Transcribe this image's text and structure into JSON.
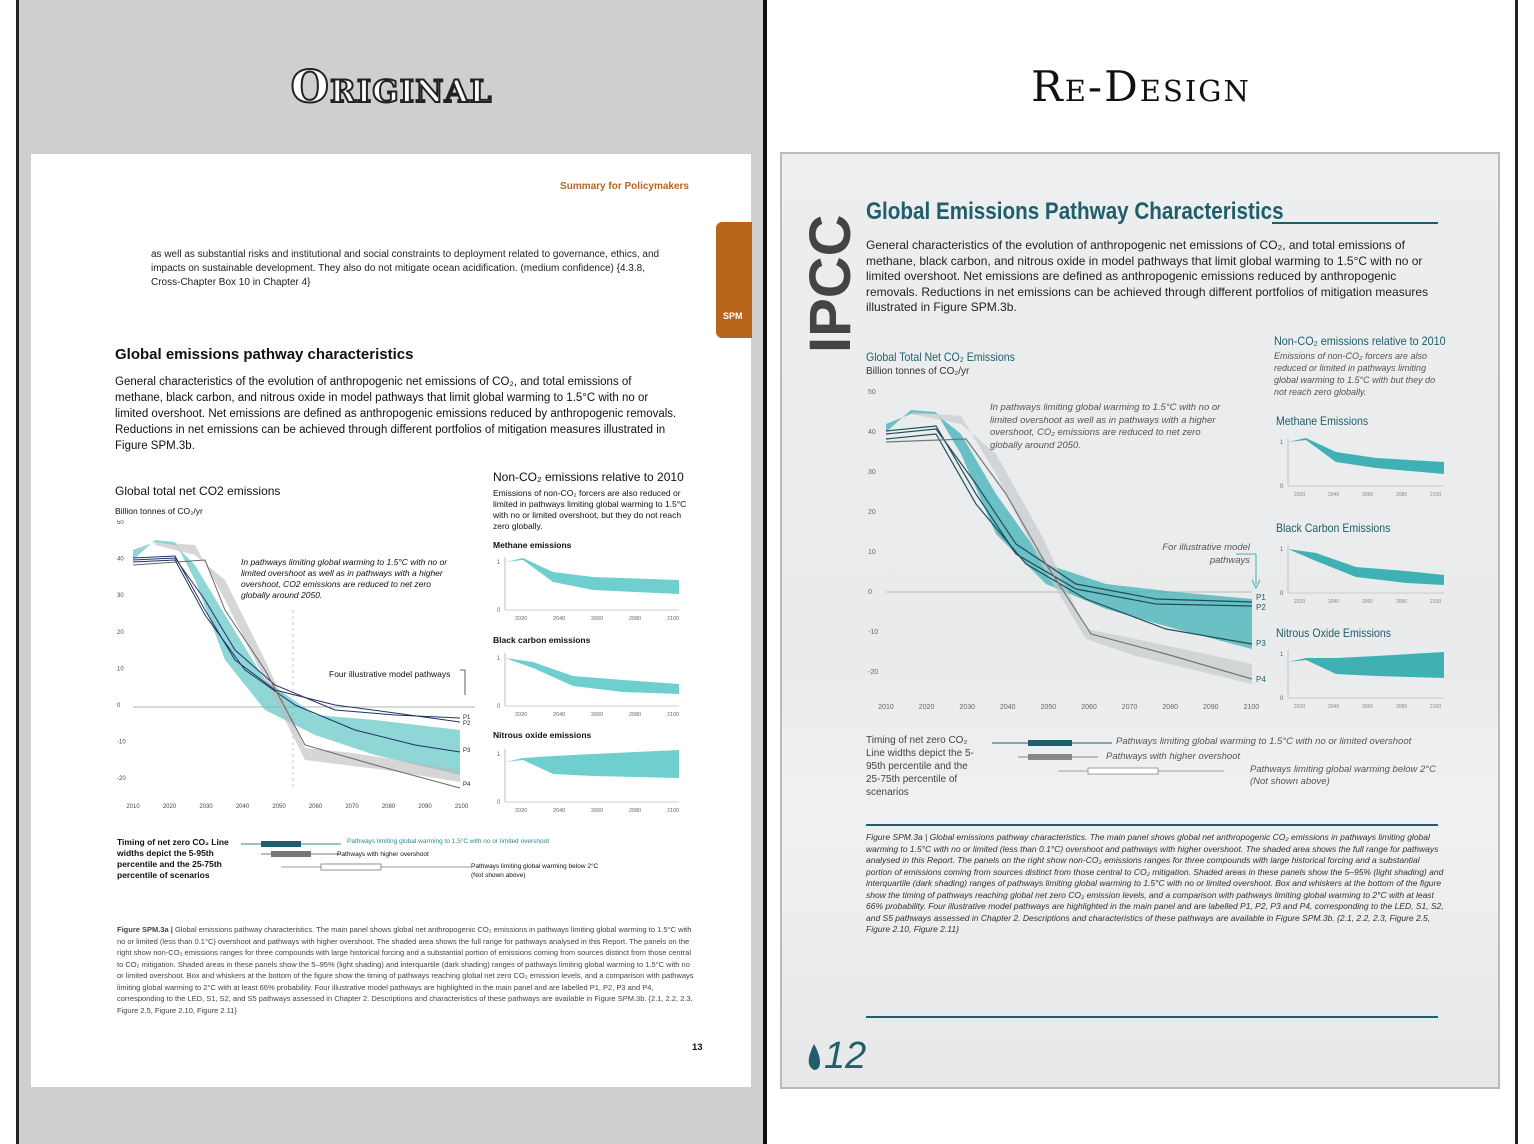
{
  "headings": {
    "original": "Original",
    "redesign": "Re-Design"
  },
  "original": {
    "header": "Summary for Policymakers",
    "tab": "SPM",
    "intro": "as well as substantial risks and institutional and social constraints to deployment related to governance, ethics, and impacts on sustainable development. They also do not mitigate ocean acidification. (medium confidence) {4.3.8, Cross-Chapter Box 10 in Chapter 4}",
    "title": "Global emissions pathway characteristics",
    "description": "General characteristics of the evolution of anthropogenic net emissions of CO₂, and total emissions of methane, black carbon, and nitrous oxide in model pathways that limit global warming to 1.5°C with no or limited overshoot. Net emissions are defined as anthropogenic emissions reduced by anthropogenic removals. Reductions in net emissions can be achieved through different portfolios of mitigation measures illustrated in Figure SPM.3b.",
    "chart_title": "Global total net CO2 emissions",
    "unit": "Billion tonnes of CO₂/yr",
    "annotation": "In pathways limiting global warming to 1.5°C with no or limited overshoot as well as in pathways with a higher overshoot, CO2 emissions are reduced to net zero globally around 2050.",
    "four_pathways": "Four illustrative model pathways",
    "nonco2_title": "Non-CO₂ emissions relative to 2010",
    "nonco2_sub": "Emissions of non-CO₂ forcers are also reduced or limited in pathways limiting global warming to 1.5°C with no or limited overshoot, but they do not reach zero globally.",
    "methane": "Methane emissions",
    "black_carbon": "Black carbon emissions",
    "nitrous": "Nitrous oxide emissions",
    "timing": "Timing of net zero CO₂ Line widths depict the 5-95th percentile and the 25-75th percentile of scenarios",
    "legend_1": "Pathways limiting global warming to 1.5°C with no or limited overshoot",
    "legend_2": "Pathways with higher overshoot",
    "legend_3a": "Pathways limiting global warming below 2°C",
    "legend_3b": "(Not shown above)",
    "caption_label": "Figure SPM.3a |",
    "caption": "Global emissions pathway characteristics. The main panel shows global net anthropogenic CO₂ emissions in pathways limiting global warming to 1.5°C with no or limited (less than 0.1°C) overshoot and pathways with higher overshoot. The shaded area shows the full range for pathways analysed in this Report. The panels on the right show non-CO₂ emissions ranges for three compounds with large historical forcing and a substantial portion of emissions coming from sources distinct from those central to CO₂ mitigation. Shaded areas in these panels show the 5–95% (light shading) and interquartile (dark shading) ranges of pathways limiting global warming to 1.5°C with no or limited overshoot. Box and whiskers at the bottom of the figure show the timing of pathways reaching global net zero CO₂ emission levels, and a comparison with pathways limiting global warming to 2°C with at least 66% probability. Four illustrative model pathways are highlighted in the main panel and are labelled P1, P2, P3 and P4, corresponding to the LED, S1, S2, and S5 pathways assessed in Chapter 2. Descriptions and characteristics of these pathways are available in Figure SPM.3b. {2.1, 2.2, 2.3, Figure 2.5, Figure 2.10, Figure 2.11}",
    "page_number": "13",
    "y_ticks": [
      "50",
      "40",
      "30",
      "20",
      "10",
      "0",
      "-10",
      "-20"
    ],
    "x_ticks": [
      "2010",
      "2020",
      "2030",
      "2040",
      "2050",
      "2060",
      "2070",
      "2080",
      "2090",
      "2100"
    ],
    "small_x_ticks": [
      "2020",
      "2040",
      "2060",
      "2080",
      "2100"
    ],
    "small_y_ticks": [
      "1",
      "0"
    ],
    "pathway_labels": [
      "P1",
      "P2",
      "P3",
      "P4"
    ]
  },
  "redesign": {
    "logo": "IPCC",
    "title": "Global Emissions Pathway Characteristics",
    "description": "General characteristics of the evolution of anthropogenic net emissions of CO₂, and total emissions of methane, black carbon, and nitrous oxide in model pathways that limit global warming to 1.5°C with no or limited overshoot. Net emissions are defined as anthropogenic emissions reduced by anthropogenic removals. Reductions in net emissions can be achieved through different portfolios of mitigation measures illustrated in Figure SPM.3b.",
    "chart_title": "Global Total Net CO₂ Emissions",
    "unit": "Billion tonnes of CO₂/yr",
    "annotation": "In pathways limiting global warming to 1.5°C with no or limited overshoot as well as in pathways with a higher overshoot, CO₂ emissions are reduced to net zero globally around 2050.",
    "illustrative": "For illustrative model pathways",
    "nonco2_title": "Non-CO₂ emissions relative to 2010",
    "nonco2_sub": "Emissions of non-CO₂ forcers are also reduced or limited in pathways limiting global warming to 1.5°C with but they do not reach zero globally.",
    "methane": "Methane Emissions",
    "black_carbon": "Black Carbon Emissions",
    "nitrous": "Nitrous Oxide Emissions",
    "timing": "Timing of net zero CO₂ Line widths depict the 5-95th percentile and the 25-75th percentile of scenarios",
    "legend_1": "Pathways limiting global warming to 1.5°C with no or limited overshoot",
    "legend_2": "Pathways with higher overshoot",
    "legend_3": "Pathways limiting global warming below 2°C (Not shown above)",
    "caption": "Figure SPM.3a | Global emissions pathway characteristics. The main panel shows global net anthropogenic CO₂ emissions in pathways limiting global warming to 1.5°C with no or limited (less than 0.1°C) overshoot and pathways with higher overshoot. The shaded area shows the full range for pathways analysed in this Report. The panels on the right show non-CO₂ emissions ranges for three compounds with large historical forcing and a substantial portion of emissions coming from sources distinct from those central to CO₂ mitigation. Shaded areas in these panels show the 5–95% (light shading) and interquartile (dark shading) ranges of pathways limiting global warming to 1.5°C with no or limited overshoot. Box and whiskers at the bottom of the figure show the timing of pathways reaching global net zero CO₂ emission levels, and a comparison with pathways limiting global warming to 2°C with at least 66% probability. Four illustrative model pathways are highlighted in the main panel and are labelled P1, P2, P3 and P4, corresponding to the LED, S1, S2, and S5 pathways assessed in Chapter 2. Descriptions and characteristics of these pathways are available in Figure SPM.3b. {2.1, 2.2, 2.3, Figure 2.5, Figure 2.10, Figure 2.11}",
    "page_number": "12"
  },
  "colors": {
    "accent_teal": "#3fb1b5",
    "dark_teal": "#1f5e6a",
    "orange": "#b8651c"
  }
}
